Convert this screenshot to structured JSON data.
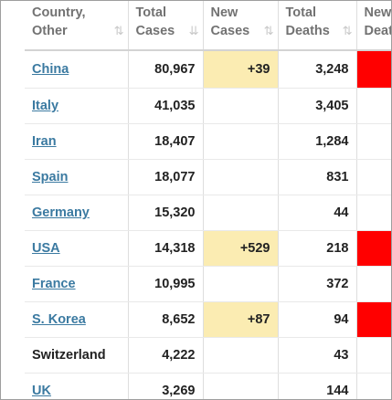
{
  "headers": {
    "country": [
      "Country,",
      "Other"
    ],
    "total_cases": [
      "Total",
      "Cases"
    ],
    "new_cases": [
      "New",
      "Cases"
    ],
    "total_deaths": [
      "Total",
      "Deaths"
    ],
    "new_deaths": [
      "New",
      "Death"
    ]
  },
  "icons": {
    "sort_unsorted": "⇅",
    "sort_desc": "⇊"
  },
  "colors": {
    "link": "#3b7aa1",
    "new_cases_highlight": "#fbecb2",
    "new_deaths_highlight": "#ff0000"
  },
  "rows": [
    {
      "country": "China",
      "link": true,
      "total_cases": "80,967",
      "new_cases": "+39",
      "total_deaths": "3,248",
      "new_deaths_flag": true
    },
    {
      "country": "Italy",
      "link": true,
      "total_cases": "41,035",
      "new_cases": "",
      "total_deaths": "3,405",
      "new_deaths_flag": false
    },
    {
      "country": "Iran",
      "link": true,
      "total_cases": "18,407",
      "new_cases": "",
      "total_deaths": "1,284",
      "new_deaths_flag": false
    },
    {
      "country": "Spain",
      "link": true,
      "total_cases": "18,077",
      "new_cases": "",
      "total_deaths": "831",
      "new_deaths_flag": false
    },
    {
      "country": "Germany",
      "link": true,
      "total_cases": "15,320",
      "new_cases": "",
      "total_deaths": "44",
      "new_deaths_flag": false
    },
    {
      "country": "USA",
      "link": true,
      "total_cases": "14,318",
      "new_cases": "+529",
      "total_deaths": "218",
      "new_deaths_flag": true
    },
    {
      "country": "France",
      "link": true,
      "total_cases": "10,995",
      "new_cases": "",
      "total_deaths": "372",
      "new_deaths_flag": false
    },
    {
      "country": "S. Korea",
      "link": true,
      "total_cases": "8,652",
      "new_cases": "+87",
      "total_deaths": "94",
      "new_deaths_flag": true
    },
    {
      "country": "Switzerland",
      "link": false,
      "total_cases": "4,222",
      "new_cases": "",
      "total_deaths": "43",
      "new_deaths_flag": false
    },
    {
      "country": "UK",
      "link": true,
      "total_cases": "3,269",
      "new_cases": "",
      "total_deaths": "144",
      "new_deaths_flag": false
    }
  ]
}
